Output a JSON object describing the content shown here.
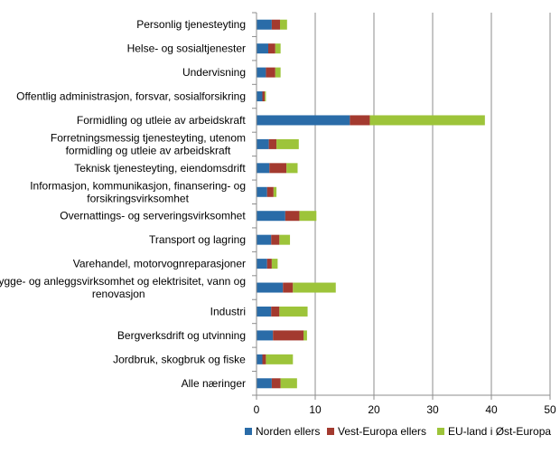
{
  "chart_data": {
    "type": "bar",
    "orientation": "horizontal",
    "stacked": true,
    "categories": [
      [
        "Personlig tjenesteyting"
      ],
      [
        "Helse- og sosialtjenester"
      ],
      [
        "Undervisning"
      ],
      [
        "Offentlig administrasjon, forsvar, sosialforsikring"
      ],
      [
        "Formidling og utleie av arbeidskraft"
      ],
      [
        "Forretningsmessig tjenesteyting, utenom",
        "formidling og utleie av arbeidskraft"
      ],
      [
        "Teknisk tjenesteyting, eiendomsdrift"
      ],
      [
        "Informasjon, kommunikasjon, finansering- og",
        "forsikringsvirksomhet"
      ],
      [
        "Overnattings- og serveringsvirksomhet"
      ],
      [
        "Transport og lagring"
      ],
      [
        "Varehandel, motorvognreparasjoner"
      ],
      [
        "Bygge- og anleggsvirksomhet og elektrisitet, vann og",
        "renovasjon"
      ],
      [
        "Industri"
      ],
      [
        "Bergverksdrift og utvinning"
      ],
      [
        "Jordbruk, skogbruk og fiske"
      ],
      [
        "Alle næringer"
      ]
    ],
    "series": [
      {
        "name": "Norden ellers",
        "color": "#2a6ca8",
        "values": [
          2.6,
          2.0,
          1.6,
          1.0,
          15.9,
          2.1,
          2.2,
          1.8,
          4.9,
          2.5,
          1.8,
          4.5,
          2.5,
          2.8,
          1.0,
          2.6
        ]
      },
      {
        "name": "Vest-Europa ellers",
        "color": "#a33a2f",
        "values": [
          1.4,
          1.2,
          1.6,
          0.4,
          3.4,
          1.3,
          2.9,
          1.1,
          2.4,
          1.4,
          0.8,
          1.7,
          1.4,
          5.2,
          0.6,
          1.5
        ]
      },
      {
        "name": "EU-land i Øst-Europa",
        "color": "#9dc43a",
        "values": [
          1.2,
          0.9,
          0.9,
          0.2,
          19.6,
          3.8,
          1.9,
          0.5,
          2.9,
          1.8,
          1.0,
          7.3,
          4.8,
          0.6,
          4.6,
          2.8
        ]
      }
    ],
    "xlim": [
      0,
      50
    ],
    "xticks": [
      0,
      10,
      20,
      30,
      40,
      50
    ],
    "grid": "vertical",
    "legend_position": "bottom"
  }
}
